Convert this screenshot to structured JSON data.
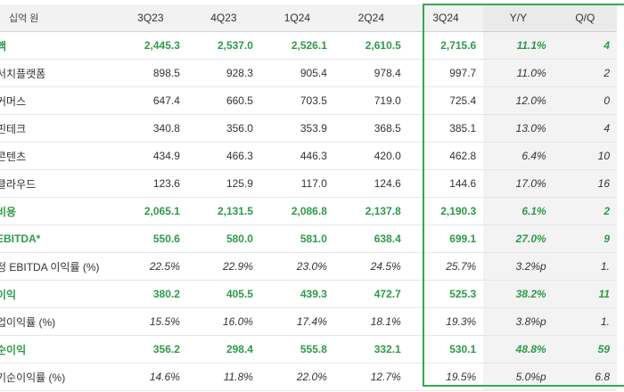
{
  "table": {
    "unit_label": "십억 원",
    "headers": [
      "3Q23",
      "4Q23",
      "1Q24",
      "2Q24",
      "3Q24",
      "Y/Y",
      "Q/Q"
    ],
    "rows": [
      {
        "label": "액",
        "kind": "major",
        "values": [
          "2,445.3",
          "2,537.0",
          "2,526.1",
          "2,610.5",
          "2,715.6",
          "11.1%",
          "4"
        ]
      },
      {
        "label": "서치플랫폼",
        "kind": "sub",
        "values": [
          "898.5",
          "928.3",
          "905.4",
          "978.4",
          "997.7",
          "11.0%",
          "2"
        ]
      },
      {
        "label": "커머스",
        "kind": "sub",
        "values": [
          "647.4",
          "660.5",
          "703.5",
          "719.0",
          "725.4",
          "12.0%",
          "0"
        ]
      },
      {
        "label": "핀테크",
        "kind": "sub",
        "values": [
          "340.8",
          "356.0",
          "353.9",
          "368.5",
          "385.1",
          "13.0%",
          "4"
        ]
      },
      {
        "label": "콘텐츠",
        "kind": "sub",
        "values": [
          "434.9",
          "466.3",
          "446.3",
          "420.0",
          "462.8",
          "6.4%",
          "10"
        ]
      },
      {
        "label": "클라우드",
        "kind": "sub",
        "values": [
          "123.6",
          "125.9",
          "117.0",
          "124.6",
          "144.6",
          "17.0%",
          "16"
        ]
      },
      {
        "label": "비용",
        "kind": "major",
        "values": [
          "2,065.1",
          "2,131.5",
          "2,086.8",
          "2,137.8",
          "2,190.3",
          "6.1%",
          "2"
        ]
      },
      {
        "label": "EBITDA*",
        "kind": "major",
        "values": [
          "550.6",
          "580.0",
          "581.0",
          "638.4",
          "699.1",
          "27.0%",
          "9"
        ]
      },
      {
        "label": "정 EBITDA 이익률 (%)",
        "kind": "sub",
        "values": [
          "22.5%",
          "22.9%",
          "23.0%",
          "24.5%",
          "25.7%",
          "3.2%p",
          "1."
        ]
      },
      {
        "label": "이익",
        "kind": "major",
        "values": [
          "380.2",
          "405.5",
          "439.3",
          "472.7",
          "525.3",
          "38.2%",
          "11"
        ]
      },
      {
        "label": "업이익률 (%)",
        "kind": "sub",
        "values": [
          "15.5%",
          "16.0%",
          "17.4%",
          "18.1%",
          "19.3%",
          "3.8%p",
          "1."
        ]
      },
      {
        "label": "순이익",
        "kind": "major",
        "values": [
          "356.2",
          "298.4",
          "555.8",
          "332.1",
          "530.1",
          "48.8%",
          "59"
        ]
      },
      {
        "label": "기순이익률 (%)",
        "kind": "sub",
        "values": [
          "14.6%",
          "11.8%",
          "22.0%",
          "12.7%",
          "19.5%",
          "5.0%p",
          "6.8"
        ]
      }
    ]
  }
}
